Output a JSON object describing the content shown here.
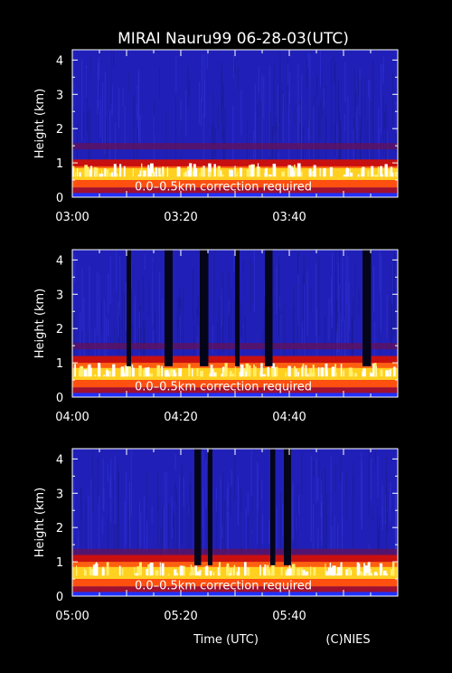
{
  "figure": {
    "title": "MIRAI Nauru99 06-28-03(UTC)",
    "xlabel": "Time (UTC)",
    "credit": "(C)NIES",
    "ylabel": "Height (km)",
    "annotation": "0.0–0.5km correction required"
  },
  "colors": {
    "background": "#000000",
    "sky": "#2020b8",
    "cloud_base_low": "#c81010",
    "cloud_core": "#ffd020",
    "cloud_peak": "#ffffff",
    "near_surface": "#ff5010",
    "surface_band": "#2030ff",
    "gap": "#05051a"
  },
  "chart_data": [
    {
      "type": "heatmap",
      "panel": 1,
      "xlabel": "",
      "ylabel": "Height (km)",
      "x_ticks": [
        "03:00",
        "03:20",
        "03:40"
      ],
      "x_range_min": [
        0,
        60
      ],
      "y_ticks": [
        0,
        1,
        2,
        3,
        4
      ],
      "ylim": [
        0,
        4.3
      ],
      "annotation": "0.0–0.5km correction required",
      "cloud_layer_km": [
        0.5,
        1.1
      ],
      "upper_layer_km": 1.5,
      "gaps_min": []
    },
    {
      "type": "heatmap",
      "panel": 2,
      "xlabel": "",
      "ylabel": "Height (km)",
      "x_ticks": [
        "04:00",
        "04:20",
        "04:40"
      ],
      "x_range_min": [
        0,
        60
      ],
      "y_ticks": [
        0,
        1,
        2,
        3,
        4
      ],
      "ylim": [
        0,
        4.3
      ],
      "annotation": "0.0–0.5km correction required",
      "cloud_layer_km": [
        0.5,
        1.2
      ],
      "upper_layer_km": 1.5,
      "gaps_min": [
        10.0,
        17.0,
        23.5,
        30.0,
        35.5,
        53.5
      ]
    },
    {
      "type": "heatmap",
      "panel": 3,
      "xlabel": "Time (UTC)",
      "ylabel": "Height (km)",
      "x_ticks": [
        "05:00",
        "05:20",
        "05:40"
      ],
      "x_range_min": [
        0,
        60
      ],
      "y_ticks": [
        0,
        1,
        2,
        3,
        4
      ],
      "ylim": [
        0,
        4.3
      ],
      "annotation": "0.0–0.5km correction required",
      "cloud_layer_km": [
        0.5,
        1.2
      ],
      "upper_layer_km": 1.3,
      "gaps_min": [
        22.5,
        25.0,
        36.5,
        39.0
      ]
    }
  ]
}
